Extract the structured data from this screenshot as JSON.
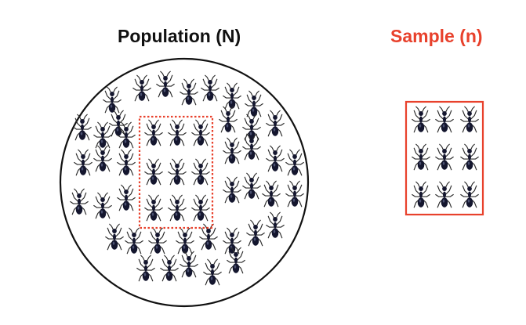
{
  "population": {
    "title": "Population (N)",
    "icon": "ant-icon",
    "circle_color": "#111111"
  },
  "sample": {
    "title": "Sample (n)",
    "icon": "ant-icon",
    "color": "#e8412c"
  },
  "selection_box": {
    "style": "dotted",
    "color": "#e8412c"
  },
  "ant_color": "#14162e"
}
